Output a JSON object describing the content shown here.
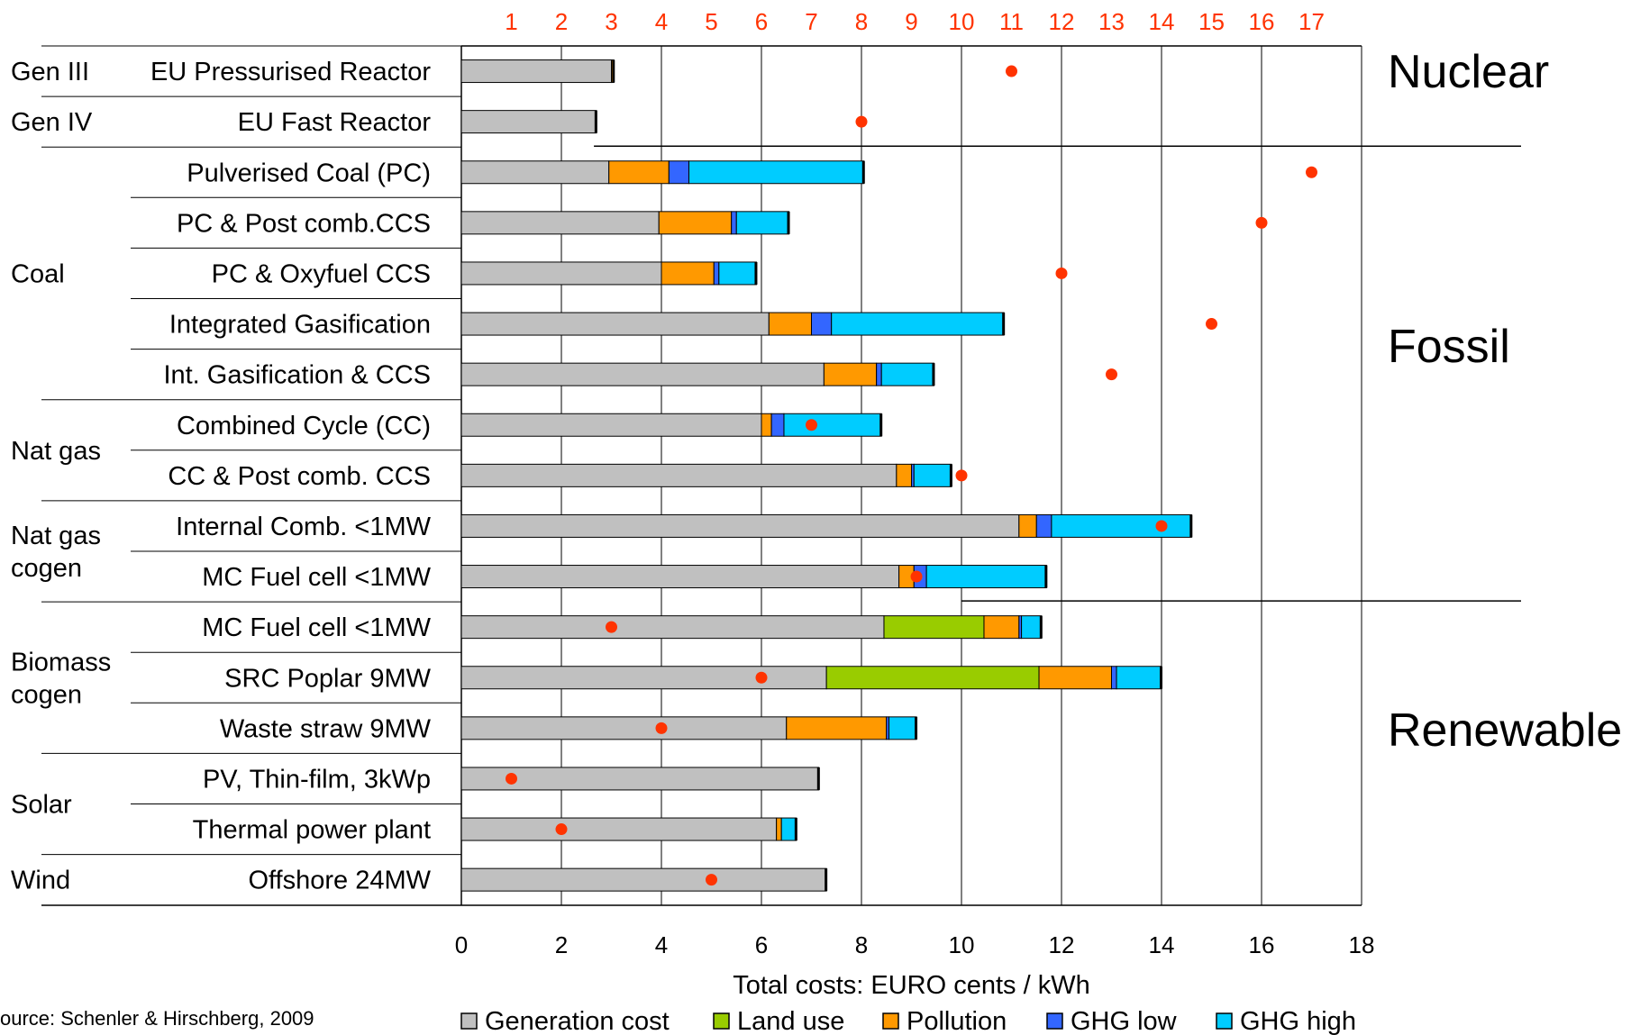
{
  "chart_data": {
    "type": "bar",
    "stacked": true,
    "orientation": "horizontal",
    "xlabel": "Total costs: EURO cents / kWh",
    "xlim": [
      0,
      18
    ],
    "xticks": [
      0,
      2,
      4,
      6,
      8,
      10,
      12,
      14,
      16,
      18
    ],
    "source": "ource: Schenler & Hirschberg, 2009",
    "grid": "vertical",
    "legend_position": "bottom",
    "categories": [
      "EU Pressurised Reactor",
      "EU Fast Reactor",
      "Pulverised Coal (PC)",
      "PC & Post comb.CCS",
      "PC & Oxyfuel CCS",
      "Integrated Gasification",
      "Int. Gasification & CCS",
      "Combined Cycle (CC)",
      "CC & Post comb. CCS",
      "Internal Comb. <1MW",
      "MC Fuel cell <1MW",
      "MC Fuel cell <1MW",
      "SRC Poplar 9MW",
      "Waste straw 9MW",
      "PV, Thin-film, 3kWp",
      "Thermal power plant",
      "Offshore 24MW"
    ],
    "series": [
      {
        "name": "Generation cost",
        "color": "#c0c0c0",
        "values": [
          3.0,
          2.7,
          2.95,
          3.95,
          4.0,
          6.15,
          7.25,
          6.0,
          8.7,
          11.15,
          8.75,
          8.45,
          7.3,
          6.5,
          7.15,
          6.3,
          7.3
        ]
      },
      {
        "name": "Land use",
        "color": "#99cc00",
        "values": [
          0,
          0,
          0,
          0,
          0,
          0,
          0,
          0,
          0,
          0,
          0,
          2.0,
          4.25,
          0,
          0,
          0,
          0
        ]
      },
      {
        "name": "Pollution",
        "color": "#ff9900",
        "values": [
          0.05,
          0,
          1.2,
          1.45,
          1.05,
          0.85,
          1.05,
          0.2,
          0.3,
          0.35,
          0.3,
          0.7,
          1.45,
          2.0,
          0,
          0.1,
          0
        ]
      },
      {
        "name": "GHG low",
        "color": "#3366ff",
        "values": [
          0,
          0,
          0.4,
          0.1,
          0.1,
          0.4,
          0.1,
          0.25,
          0.05,
          0.3,
          0.25,
          0.05,
          0.1,
          0.05,
          0,
          0,
          0
        ]
      },
      {
        "name": "GHG high",
        "color": "#00ccff",
        "values": [
          0,
          0,
          3.5,
          1.05,
          0.75,
          3.45,
          1.05,
          1.95,
          0.75,
          2.8,
          2.4,
          0.4,
          0.9,
          0.55,
          0,
          0.3,
          0
        ]
      }
    ],
    "rank": {
      "label_values": [
        1,
        2,
        3,
        4,
        5,
        6,
        7,
        8,
        9,
        10,
        11,
        12,
        13,
        14,
        15,
        16,
        17
      ],
      "values": [
        11,
        8,
        17,
        16,
        12,
        15,
        13,
        7,
        10,
        14,
        9.1,
        3,
        6,
        4,
        1,
        2,
        5
      ],
      "color": "#ff3300"
    },
    "groups": [
      {
        "label": "Gen III",
        "rows": [
          0,
          0
        ]
      },
      {
        "label": "Gen IV",
        "rows": [
          1,
          1
        ]
      },
      {
        "label": "Coal",
        "rows": [
          2,
          6
        ]
      },
      {
        "label": "Nat gas",
        "rows": [
          7,
          8
        ]
      },
      {
        "label": "Nat gas\ncogen",
        "rows": [
          9,
          10
        ]
      },
      {
        "label": "Biomass\ncogen",
        "rows": [
          11,
          13
        ]
      },
      {
        "label": "Solar",
        "rows": [
          14,
          15
        ]
      },
      {
        "label": "Wind",
        "rows": [
          16,
          16
        ]
      }
    ],
    "sections": [
      {
        "label": "Nuclear",
        "rows": [
          0,
          1
        ]
      },
      {
        "label": "Fossil",
        "rows": [
          2,
          10
        ]
      },
      {
        "label": "Renewable",
        "rows": [
          11,
          16
        ]
      }
    ]
  }
}
